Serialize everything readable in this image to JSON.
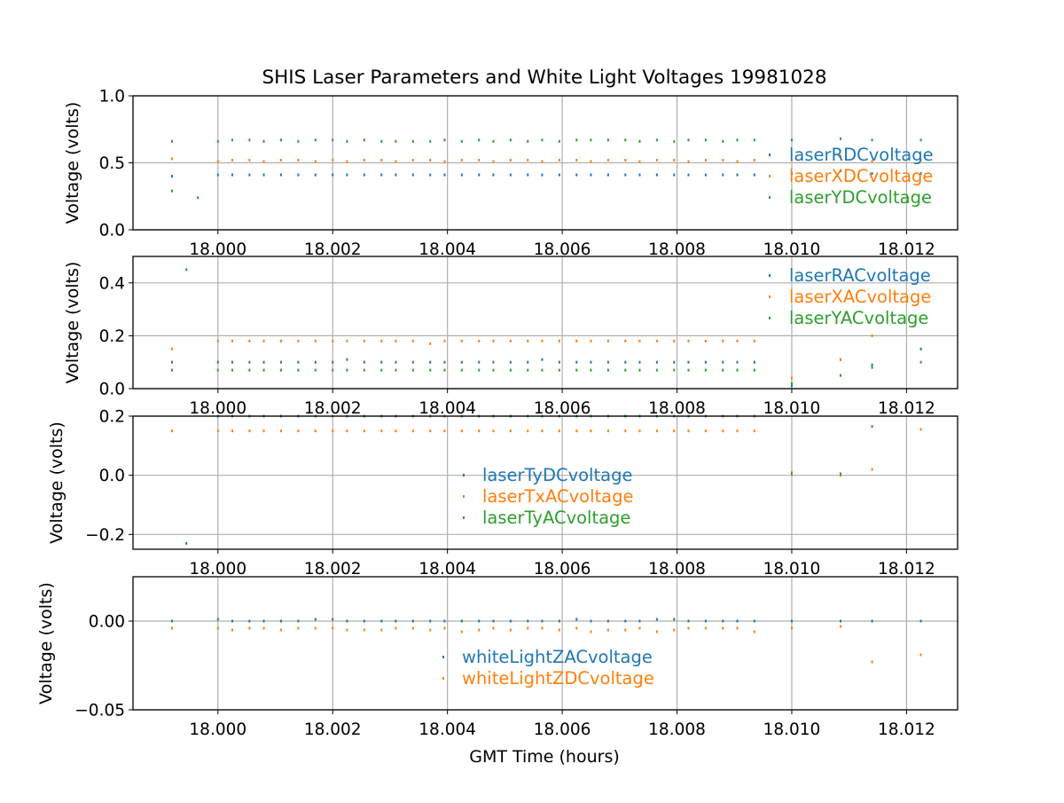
{
  "figure": {
    "title": "SHIS Laser Parameters and White Light Voltages 19981028",
    "xlabel": "GMT Time (hours)",
    "colors": {
      "blue": "#1f77b4",
      "orange": "#ff7f0e",
      "green": "#2ca02c",
      "grid": "#b0b0b0",
      "axis": "#000000"
    }
  },
  "chart_data": [
    {
      "type": "scatter",
      "ylabel": "Voltage (volts)",
      "xlim": [
        17.99852,
        18.01289
      ],
      "ylim": [
        0.0,
        1.0
      ],
      "xticks": [
        "18.000",
        "18.002",
        "18.004",
        "18.006",
        "18.008",
        "18.010",
        "18.012"
      ],
      "yticks": [
        "0.0",
        "0.5",
        "1.0"
      ],
      "grid": true,
      "legend_position": "right",
      "series": [
        {
          "name": "laserRDCvoltage",
          "color": "#1f77b4",
          "x": [
            17.9992,
            18.0,
            18.00025,
            18.00055,
            18.0008,
            18.0011,
            18.0014,
            18.0017,
            18.002,
            18.00225,
            18.00255,
            18.00285,
            18.0031,
            18.0034,
            18.0037,
            18.00395,
            18.00425,
            18.00455,
            18.0048,
            18.0051,
            18.0054,
            18.00565,
            18.00595,
            18.00625,
            18.0065,
            18.0068,
            18.0071,
            18.00735,
            18.00765,
            18.00795,
            18.0082,
            18.0085,
            18.0088,
            18.00905,
            18.00935,
            18.01,
            18.01085,
            18.0114,
            18.01225
          ],
          "y": [
            0.4,
            0.41,
            0.41,
            0.41,
            0.41,
            0.41,
            0.41,
            0.41,
            0.41,
            0.41,
            0.41,
            0.41,
            0.41,
            0.41,
            0.41,
            0.41,
            0.41,
            0.41,
            0.41,
            0.41,
            0.41,
            0.41,
            0.41,
            0.41,
            0.41,
            0.41,
            0.41,
            0.41,
            0.41,
            0.41,
            0.41,
            0.41,
            0.41,
            0.41,
            0.41,
            0.42,
            0.44,
            0.42,
            0.42
          ]
        },
        {
          "name": "laserXDCvoltage",
          "color": "#ff7f0e",
          "x": [
            17.9992,
            18.0,
            18.00025,
            18.00055,
            18.0008,
            18.0011,
            18.0014,
            18.0017,
            18.002,
            18.00225,
            18.00255,
            18.00285,
            18.0031,
            18.0034,
            18.0037,
            18.00395,
            18.00425,
            18.00455,
            18.0048,
            18.0051,
            18.0054,
            18.00565,
            18.00595,
            18.00625,
            18.0065,
            18.0068,
            18.0071,
            18.00735,
            18.00765,
            18.00795,
            18.0082,
            18.0085,
            18.0088,
            18.00905,
            18.00935,
            18.01,
            18.01085,
            18.0114,
            18.01225
          ],
          "y": [
            0.53,
            0.51,
            0.52,
            0.52,
            0.51,
            0.52,
            0.52,
            0.51,
            0.52,
            0.51,
            0.52,
            0.52,
            0.51,
            0.52,
            0.52,
            0.51,
            0.52,
            0.52,
            0.51,
            0.52,
            0.52,
            0.51,
            0.52,
            0.52,
            0.51,
            0.52,
            0.52,
            0.51,
            0.52,
            0.52,
            0.51,
            0.52,
            0.52,
            0.51,
            0.52,
            0.52,
            0.55,
            0.51,
            0.52
          ]
        },
        {
          "name": "laserYDCvoltage",
          "color": "#2ca02c",
          "x": [
            17.9992,
            17.9992,
            17.99965,
            18.0,
            18.00025,
            18.00055,
            18.0008,
            18.0011,
            18.0014,
            18.0017,
            18.002,
            18.00225,
            18.00255,
            18.00285,
            18.0031,
            18.0034,
            18.0037,
            18.00395,
            18.00425,
            18.00455,
            18.0048,
            18.0051,
            18.0054,
            18.00565,
            18.00595,
            18.00625,
            18.0065,
            18.0068,
            18.0071,
            18.00735,
            18.00765,
            18.00795,
            18.0082,
            18.0085,
            18.0088,
            18.00905,
            18.00935,
            18.01,
            18.01085,
            18.0114,
            18.01225
          ],
          "y": [
            0.66,
            0.29,
            0.24,
            0.66,
            0.67,
            0.67,
            0.66,
            0.67,
            0.66,
            0.67,
            0.67,
            0.66,
            0.67,
            0.66,
            0.66,
            0.66,
            0.66,
            0.67,
            0.66,
            0.67,
            0.66,
            0.67,
            0.66,
            0.67,
            0.66,
            0.67,
            0.67,
            0.67,
            0.67,
            0.66,
            0.67,
            0.66,
            0.67,
            0.67,
            0.66,
            0.67,
            0.67,
            0.67,
            0.68,
            0.67,
            0.67
          ]
        }
      ]
    },
    {
      "type": "scatter",
      "ylabel": "Voltage (volts)",
      "xlim": [
        17.99852,
        18.01289
      ],
      "ylim": [
        0.0,
        0.5
      ],
      "xticks": [
        "18.000",
        "18.002",
        "18.004",
        "18.006",
        "18.008",
        "18.010",
        "18.012"
      ],
      "yticks": [
        "0.0",
        "0.2",
        "0.4"
      ],
      "grid": true,
      "legend_position": "top-right",
      "series": [
        {
          "name": "laserRACvoltage",
          "color": "#1f77b4",
          "x": [
            17.9992,
            18.0,
            18.00025,
            18.00055,
            18.0008,
            18.0011,
            18.0014,
            18.0017,
            18.002,
            18.00225,
            18.00255,
            18.00285,
            18.0031,
            18.0034,
            18.0037,
            18.00395,
            18.00425,
            18.00455,
            18.0048,
            18.0051,
            18.0054,
            18.00565,
            18.00595,
            18.00625,
            18.0065,
            18.0068,
            18.0071,
            18.00735,
            18.00765,
            18.00795,
            18.0082,
            18.0085,
            18.0088,
            18.00905,
            18.00935,
            18.01,
            18.01085,
            18.0114,
            18.01225
          ],
          "y": [
            0.1,
            0.1,
            0.1,
            0.1,
            0.1,
            0.1,
            0.1,
            0.1,
            0.1,
            0.11,
            0.1,
            0.1,
            0.1,
            0.1,
            0.1,
            0.1,
            0.1,
            0.1,
            0.1,
            0.1,
            0.1,
            0.11,
            0.1,
            0.1,
            0.1,
            0.1,
            0.1,
            0.1,
            0.1,
            0.1,
            0.1,
            0.1,
            0.1,
            0.1,
            0.1,
            0.01,
            0.11,
            0.09,
            0.15
          ]
        },
        {
          "name": "laserXACvoltage",
          "color": "#ff7f0e",
          "x": [
            17.9992,
            18.0,
            18.00025,
            18.00055,
            18.0008,
            18.0011,
            18.0014,
            18.0017,
            18.002,
            18.00225,
            18.00255,
            18.00285,
            18.0031,
            18.0034,
            18.0037,
            18.00395,
            18.00425,
            18.00455,
            18.0048,
            18.0051,
            18.0054,
            18.00565,
            18.00595,
            18.00625,
            18.0065,
            18.0068,
            18.0071,
            18.00735,
            18.00765,
            18.00795,
            18.0082,
            18.0085,
            18.0088,
            18.00905,
            18.00935,
            18.01,
            18.01085,
            18.0114
          ],
          "y": [
            0.15,
            0.18,
            0.18,
            0.18,
            0.18,
            0.18,
            0.18,
            0.18,
            0.18,
            0.18,
            0.18,
            0.18,
            0.18,
            0.18,
            0.17,
            0.18,
            0.18,
            0.18,
            0.18,
            0.18,
            0.18,
            0.18,
            0.18,
            0.18,
            0.18,
            0.18,
            0.18,
            0.18,
            0.18,
            0.18,
            0.18,
            0.18,
            0.18,
            0.18,
            0.18,
            0.04,
            0.11,
            0.2
          ]
        },
        {
          "name": "laserYACvoltage",
          "color": "#2ca02c",
          "x": [
            17.9992,
            17.99945,
            18.0,
            18.00025,
            18.00055,
            18.0008,
            18.0011,
            18.0014,
            18.0017,
            18.002,
            18.00225,
            18.00255,
            18.00285,
            18.0031,
            18.0034,
            18.0037,
            18.00395,
            18.00425,
            18.00455,
            18.0048,
            18.0051,
            18.0054,
            18.00565,
            18.00595,
            18.00625,
            18.0065,
            18.0068,
            18.0071,
            18.00735,
            18.00765,
            18.00795,
            18.0082,
            18.0085,
            18.0088,
            18.00905,
            18.00935,
            18.01,
            18.01085,
            18.0114,
            18.01225
          ],
          "y": [
            0.07,
            0.45,
            0.07,
            0.07,
            0.07,
            0.07,
            0.07,
            0.07,
            0.07,
            0.07,
            0.07,
            0.07,
            0.07,
            0.07,
            0.07,
            0.07,
            0.07,
            0.07,
            0.07,
            0.07,
            0.07,
            0.07,
            0.07,
            0.07,
            0.07,
            0.07,
            0.07,
            0.07,
            0.07,
            0.07,
            0.07,
            0.07,
            0.07,
            0.07,
            0.07,
            0.07,
            0.02,
            0.05,
            0.08,
            0.1
          ]
        }
      ]
    },
    {
      "type": "scatter",
      "ylabel": "Voltage (volts)",
      "xlim": [
        17.99852,
        18.01289
      ],
      "ylim": [
        -0.25,
        0.2
      ],
      "xticks": [
        "18.000",
        "18.002",
        "18.004",
        "18.006",
        "18.008",
        "18.010",
        "18.012"
      ],
      "yticks": [
        "0.2",
        "0.0",
        "−0.2"
      ],
      "ytick_values": [
        0.2,
        0.0,
        -0.2
      ],
      "grid": true,
      "legend_position": "center",
      "series": [
        {
          "name": "laserTyDCvoltage",
          "color": "#1f77b4",
          "x": [
            17.99945
          ],
          "y": [
            -0.23
          ]
        },
        {
          "name": "laserTxACvoltage",
          "color": "#ff7f0e",
          "x": [
            17.9992,
            18.0,
            18.00025,
            18.00055,
            18.0008,
            18.0011,
            18.0014,
            18.0017,
            18.002,
            18.00225,
            18.00255,
            18.00285,
            18.0031,
            18.0034,
            18.0037,
            18.00395,
            18.00425,
            18.00455,
            18.0048,
            18.0051,
            18.0054,
            18.00565,
            18.00595,
            18.00625,
            18.0065,
            18.0068,
            18.0071,
            18.00735,
            18.00765,
            18.00795,
            18.0082,
            18.0085,
            18.0088,
            18.00905,
            18.00935,
            18.01,
            18.01085,
            18.0114,
            18.01225
          ],
          "y": [
            0.15,
            0.15,
            0.15,
            0.15,
            0.15,
            0.15,
            0.15,
            0.15,
            0.15,
            0.15,
            0.15,
            0.15,
            0.15,
            0.15,
            0.15,
            0.15,
            0.15,
            0.15,
            0.15,
            0.15,
            0.15,
            0.15,
            0.15,
            0.15,
            0.15,
            0.15,
            0.15,
            0.15,
            0.15,
            0.15,
            0.15,
            0.15,
            0.15,
            0.15,
            0.15,
            0.01,
            0.0,
            0.02,
            0.155
          ]
        },
        {
          "name": "laserTyACvoltage",
          "color": "#2ca02c",
          "x": [
            18.0,
            18.00025,
            18.00055,
            18.0008,
            18.0011,
            18.0014,
            18.0017,
            18.002,
            18.00225,
            18.00255,
            18.00285,
            18.0031,
            18.0034,
            18.0037,
            18.00395,
            18.00425,
            18.00455,
            18.0048,
            18.0051,
            18.0054,
            18.00565,
            18.00595,
            18.00625,
            18.0065,
            18.0068,
            18.0071,
            18.00735,
            18.00765,
            18.00795,
            18.0082,
            18.0085,
            18.0088,
            18.00905,
            18.00935,
            18.01,
            18.01085,
            18.0114
          ],
          "y": [
            0.2,
            0.2,
            0.2,
            0.2,
            0.2,
            0.2,
            0.2,
            0.2,
            0.2,
            0.2,
            0.2,
            0.2,
            0.2,
            0.2,
            0.2,
            0.2,
            0.2,
            0.2,
            0.2,
            0.2,
            0.2,
            0.2,
            0.2,
            0.2,
            0.2,
            0.2,
            0.2,
            0.2,
            0.2,
            0.2,
            0.2,
            0.2,
            0.2,
            0.2,
            0.005,
            0.005,
            0.165
          ]
        }
      ]
    },
    {
      "type": "scatter",
      "ylabel": "Voltage (volts)",
      "xlabel": "GMT Time (hours)",
      "xlim": [
        17.99852,
        18.01289
      ],
      "ylim": [
        -0.05,
        0.025
      ],
      "xticks": [
        "18.000",
        "18.002",
        "18.004",
        "18.006",
        "18.008",
        "18.010",
        "18.012"
      ],
      "yticks": [
        "0.00",
        "−0.05"
      ],
      "ytick_values": [
        0.0,
        -0.05
      ],
      "grid": true,
      "legend_position": "lower center",
      "series": [
        {
          "name": "whiteLightZACvoltage",
          "color": "#1f77b4",
          "x": [
            17.9992,
            18.0,
            18.00025,
            18.00055,
            18.0008,
            18.0011,
            18.0014,
            18.0017,
            18.002,
            18.00225,
            18.00255,
            18.00285,
            18.0031,
            18.0034,
            18.0037,
            18.00395,
            18.00425,
            18.00455,
            18.0048,
            18.0051,
            18.0054,
            18.00565,
            18.00595,
            18.00625,
            18.0065,
            18.0068,
            18.0071,
            18.00735,
            18.00765,
            18.00795,
            18.0082,
            18.0085,
            18.0088,
            18.00905,
            18.00935,
            18.01,
            18.01085,
            18.0114,
            18.01225
          ],
          "y": [
            0.0,
            0.001,
            0.0,
            0.0,
            0.0,
            0.0,
            0.0,
            0.001,
            0.001,
            0.0,
            0.0,
            0.0,
            0.0,
            0.0,
            0.0,
            0.0,
            0.0,
            0.0,
            0.0,
            0.0,
            0.0,
            0.0,
            0.0,
            0.001,
            0.0,
            0.0,
            0.0,
            0.0,
            0.001,
            0.001,
            0.0,
            0.0,
            0.0,
            0.0,
            0.0,
            0.0,
            0.0,
            0.0,
            0.0
          ]
        },
        {
          "name": "whiteLightZDCvoltage",
          "color": "#ff7f0e",
          "x": [
            17.9992,
            18.0,
            18.00025,
            18.00055,
            18.0008,
            18.0011,
            18.0014,
            18.0017,
            18.002,
            18.00225,
            18.00255,
            18.00285,
            18.0031,
            18.0034,
            18.0037,
            18.00395,
            18.00425,
            18.00455,
            18.0048,
            18.0051,
            18.0054,
            18.00565,
            18.00595,
            18.00625,
            18.0065,
            18.0068,
            18.0071,
            18.00735,
            18.00765,
            18.00795,
            18.0082,
            18.0085,
            18.0088,
            18.00905,
            18.00935,
            18.01,
            18.01085,
            18.0114,
            18.01225
          ],
          "y": [
            -0.004,
            -0.004,
            -0.005,
            -0.004,
            -0.004,
            -0.005,
            -0.004,
            -0.004,
            -0.004,
            -0.005,
            -0.005,
            -0.005,
            -0.004,
            -0.004,
            -0.005,
            -0.004,
            -0.006,
            -0.005,
            -0.004,
            -0.005,
            -0.004,
            -0.004,
            -0.005,
            -0.004,
            -0.006,
            -0.005,
            -0.005,
            -0.004,
            -0.006,
            -0.005,
            -0.004,
            -0.004,
            -0.004,
            -0.004,
            -0.006,
            -0.004,
            -0.003,
            -0.023,
            -0.019
          ]
        }
      ]
    }
  ]
}
